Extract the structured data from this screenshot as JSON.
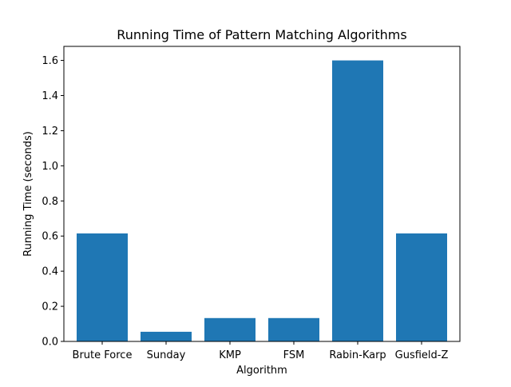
{
  "chart_data": {
    "type": "bar",
    "title": "Running Time of Pattern Matching Algorithms",
    "xlabel": "Algorithm",
    "ylabel": "Running Time (seconds)",
    "categories": [
      "Brute Force",
      "Sunday",
      "KMP",
      "FSM",
      "Rabin-Karp",
      "Gusfield-Z"
    ],
    "values": [
      0.615,
      0.055,
      0.133,
      0.133,
      1.6,
      0.615
    ],
    "ylim": [
      0,
      1.68
    ],
    "yticks": [
      "0.0",
      "0.2",
      "0.4",
      "0.6",
      "0.8",
      "1.0",
      "1.2",
      "1.4",
      "1.6"
    ],
    "grid": false,
    "legend": "none",
    "bar_color": "#1f77b4"
  }
}
